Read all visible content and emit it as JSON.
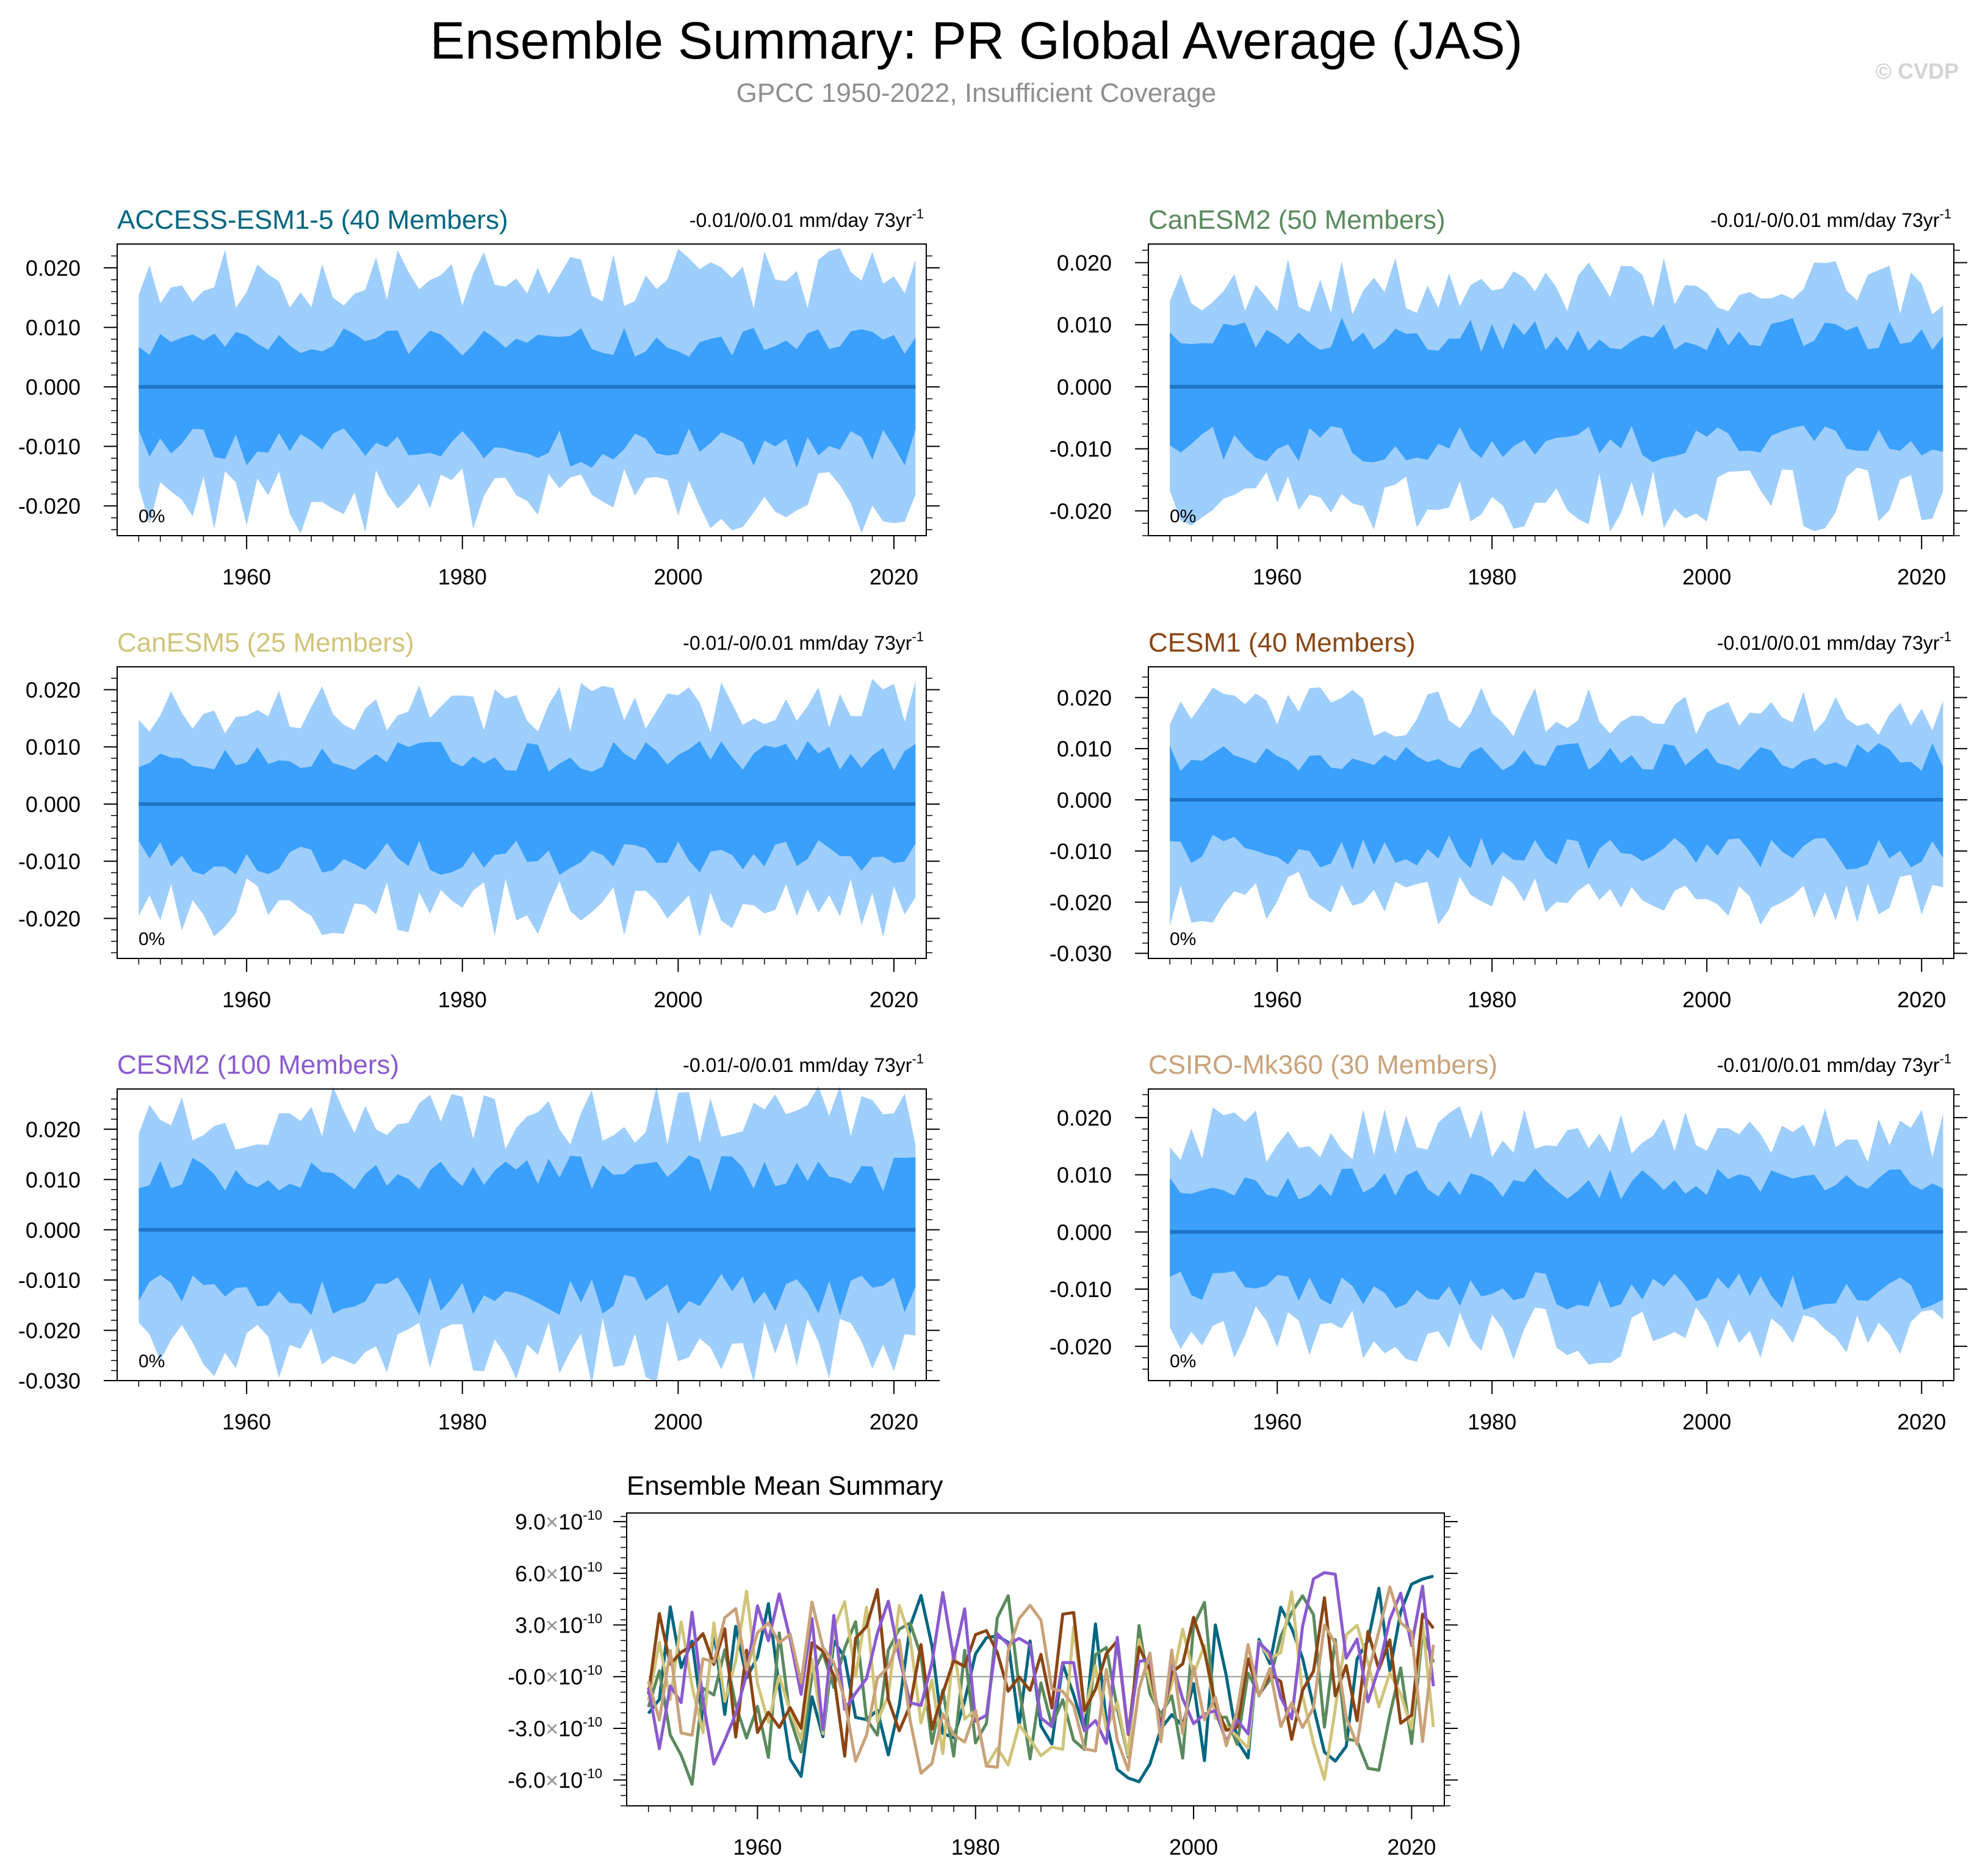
{
  "title": "Ensemble Summary: PR Global Average (JAS)",
  "subtitle": "GPCC 1950-2022, Insufficient Coverage",
  "copyright": "© CVDP",
  "colors": {
    "outer_band": "#9ecefc",
    "inner_band": "#3aa0fc",
    "mean_line": "#1f74c8"
  },
  "chart_data": [
    {
      "type": "area",
      "model": "ACCESS-ESM1-5 (40 Members)",
      "title_color": "#006680",
      "trend_label": "-0.01/0/0.01 mm/day 73yr",
      "trend_exp": "-1",
      "percent_label": "0%",
      "x_range": [
        1948,
        2023
      ],
      "ylim": [
        -0.025,
        0.024
      ],
      "yticks": [
        "0.020",
        "0.010",
        "0.000",
        "-0.010",
        "-0.020"
      ],
      "ytick_values": [
        0.02,
        0.01,
        0.0,
        -0.01,
        -0.02
      ],
      "xticks": [
        "1960",
        "1980",
        "2000",
        "2020"
      ],
      "xtick_values": [
        1960,
        1980,
        2000,
        2020
      ],
      "outer_top": 0.018,
      "outer_bottom": -0.019,
      "inner_top": 0.008,
      "inner_bottom": -0.011,
      "seed": 11
    },
    {
      "type": "area",
      "model": "CanESM2 (50 Members)",
      "title_color": "#5a8a5e",
      "trend_label": "-0.01/-0/0.01 mm/day 73yr",
      "trend_exp": "-1",
      "percent_label": "0%",
      "x_range": [
        1948,
        2023
      ],
      "ylim": [
        -0.024,
        0.023
      ],
      "yticks": [
        "0.020",
        "0.010",
        "0.000",
        "-0.010",
        "-0.020"
      ],
      "ytick_values": [
        0.02,
        0.01,
        0.0,
        -0.01,
        -0.02
      ],
      "xticks": [
        "1960",
        "1980",
        "2000",
        "2020"
      ],
      "xtick_values": [
        1960,
        1980,
        2000,
        2020
      ],
      "outer_top": 0.016,
      "outer_bottom": -0.018,
      "inner_top": 0.009,
      "inner_bottom": -0.01,
      "seed": 23
    },
    {
      "type": "area",
      "model": "CanESM5 (25 Members)",
      "title_color": "#d0c47a",
      "trend_label": "-0.01/-0/0.01 mm/day 73yr",
      "trend_exp": "-1",
      "percent_label": "0%",
      "x_range": [
        1948,
        2023
      ],
      "ylim": [
        -0.027,
        0.024
      ],
      "yticks": [
        "0.020",
        "0.010",
        "0.000",
        "-0.010",
        "-0.020"
      ],
      "ytick_values": [
        0.02,
        0.01,
        0.0,
        -0.01,
        -0.02
      ],
      "xticks": [
        "1960",
        "1980",
        "2000",
        "2020"
      ],
      "xtick_values": [
        1960,
        1980,
        2000,
        2020
      ],
      "outer_top": 0.017,
      "outer_bottom": -0.018,
      "inner_top": 0.009,
      "inner_bottom": -0.01,
      "seed": 37
    },
    {
      "type": "area",
      "model": "CESM1 (40 Members)",
      "title_color": "#8b4513",
      "trend_label": "-0.01/0/0.01 mm/day 73yr",
      "trend_exp": "-1",
      "percent_label": "0%",
      "x_range": [
        1948,
        2023
      ],
      "ylim": [
        -0.031,
        0.026
      ],
      "yticks": [
        "0.020",
        "0.010",
        "0.000",
        "-0.010",
        "-0.020",
        "-0.030"
      ],
      "ytick_values": [
        0.02,
        0.01,
        0.0,
        -0.01,
        -0.02,
        -0.03
      ],
      "xticks": [
        "1960",
        "1980",
        "2000",
        "2020"
      ],
      "xtick_values": [
        1960,
        1980,
        2000,
        2020
      ],
      "outer_top": 0.017,
      "outer_bottom": -0.019,
      "inner_top": 0.009,
      "inner_bottom": -0.011,
      "seed": 41
    },
    {
      "type": "area",
      "model": "CESM2 (100 Members)",
      "title_color": "#8a5ad0",
      "trend_label": "-0.01/-0/0.01 mm/day 73yr",
      "trend_exp": "-1",
      "percent_label": "0%",
      "x_range": [
        1948,
        2023
      ],
      "ylim": [
        -0.03,
        0.028
      ],
      "yticks": [
        "0.020",
        "0.010",
        "0.000",
        "-0.010",
        "-0.020",
        "-0.030"
      ],
      "ytick_values": [
        0.02,
        0.01,
        0.0,
        -0.01,
        -0.02,
        -0.03
      ],
      "xticks": [
        "1960",
        "1980",
        "2000",
        "2020"
      ],
      "xtick_values": [
        1960,
        1980,
        2000,
        2020
      ],
      "outer_top": 0.022,
      "outer_bottom": -0.024,
      "inner_top": 0.012,
      "inner_bottom": -0.014,
      "seed": 53
    },
    {
      "type": "area",
      "model": "CSIRO-Mk360 (30 Members)",
      "title_color": "#c9a27a",
      "trend_label": "-0.01/0/0.01 mm/day 73yr",
      "trend_exp": "-1",
      "percent_label": "0%",
      "x_range": [
        1948,
        2023
      ],
      "ylim": [
        -0.026,
        0.025
      ],
      "yticks": [
        "0.020",
        "0.010",
        "0.000",
        "-0.010",
        "-0.020"
      ],
      "ytick_values": [
        0.02,
        0.01,
        0.0,
        -0.01,
        -0.02
      ],
      "xticks": [
        "1960",
        "1980",
        "2000",
        "2020"
      ],
      "xtick_values": [
        1960,
        1980,
        2000,
        2020
      ],
      "outer_top": 0.017,
      "outer_bottom": -0.018,
      "inner_top": 0.009,
      "inner_bottom": -0.011,
      "seed": 67
    },
    {
      "type": "line",
      "title": "Ensemble Mean Summary",
      "x_range": [
        1948,
        2023
      ],
      "ylim": [
        -7.5,
        9.5
      ],
      "y_unit_exp": "-10",
      "yticks": [
        "9.0",
        "6.0",
        "3.0",
        "-0.0",
        "-3.0",
        "-6.0"
      ],
      "ytick_values": [
        9,
        6,
        3,
        0,
        -3,
        -6
      ],
      "xticks": [
        "1960",
        "1980",
        "2000",
        "2020"
      ],
      "xtick_values": [
        1960,
        1980,
        2000,
        2020
      ],
      "series": [
        {
          "name": "ACCESS-ESM1-5",
          "color": "#006680",
          "seed": 101
        },
        {
          "name": "CanESM2",
          "color": "#5a8a5e",
          "seed": 202
        },
        {
          "name": "CanESM5",
          "color": "#d0c47a",
          "seed": 303
        },
        {
          "name": "CESM1",
          "color": "#8b4513",
          "seed": 404
        },
        {
          "name": "CESM2",
          "color": "#8a5ad0",
          "seed": 505
        },
        {
          "name": "CSIRO-Mk360",
          "color": "#c9a27a",
          "seed": 606
        }
      ]
    }
  ]
}
